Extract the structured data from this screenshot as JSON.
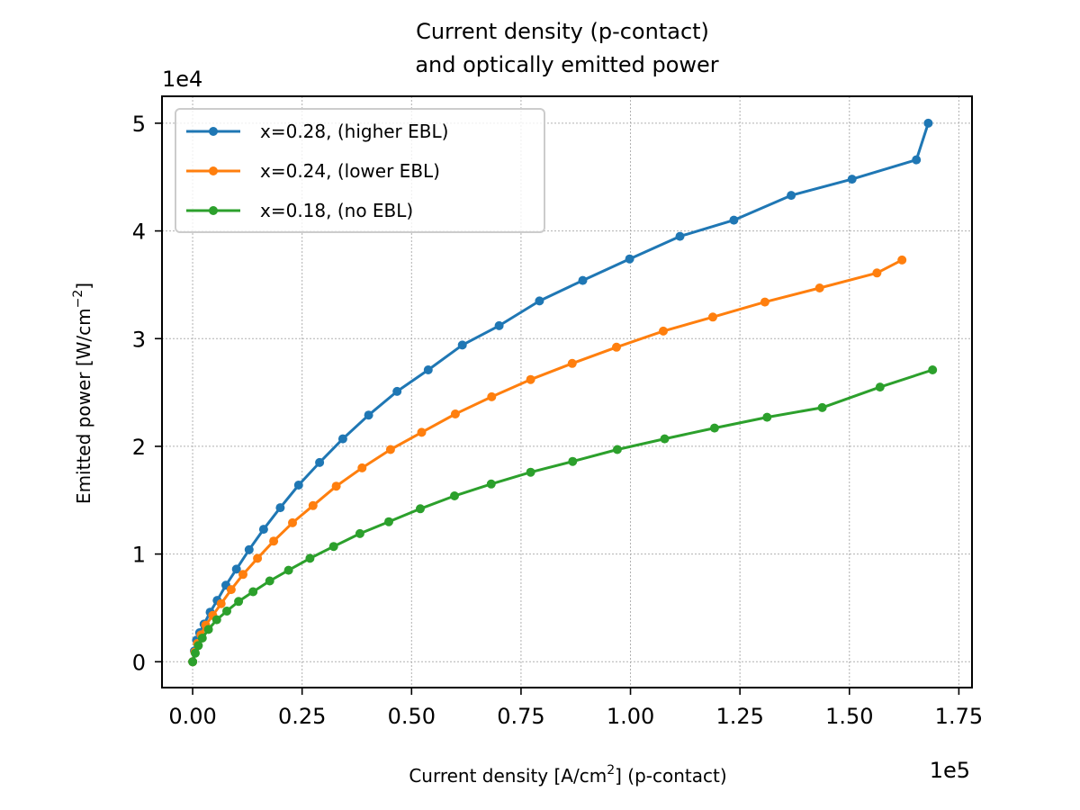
{
  "chart_data": {
    "type": "line",
    "title_lines": [
      "Current density (p-contact)",
      "and optically emitted power"
    ],
    "xlabel_main": "Current density [A/cm",
    "xlabel_sup": "2",
    "xlabel_tail": "] (p-contact)",
    "ylabel_main": "Emitted power [W/cm",
    "ylabel_sup": "−2",
    "ylabel_tail": "]",
    "x_offset_label": "1e5",
    "y_offset_label": "1e4",
    "xlim": [
      -7000,
      178000
    ],
    "ylim": [
      -2400,
      52500
    ],
    "x_ticks": [
      0,
      25000,
      50000,
      75000,
      100000,
      125000,
      150000,
      175000
    ],
    "x_tick_labels": [
      "0.00",
      "0.25",
      "0.50",
      "0.75",
      "1.00",
      "1.25",
      "1.50",
      "1.75"
    ],
    "y_ticks": [
      0,
      10000,
      20000,
      30000,
      40000,
      50000
    ],
    "y_tick_labels": [
      "0",
      "1",
      "2",
      "3",
      "4",
      "5"
    ],
    "grid": true,
    "legend_position": "top-left",
    "series": [
      {
        "name": "x=0.28, (higher EBL)",
        "color": "#1f77b4",
        "x": [
          0,
          400,
          900,
          1600,
          2600,
          4000,
          5600,
          7600,
          10000,
          12900,
          16200,
          20000,
          24200,
          29000,
          34300,
          40200,
          46700,
          53800,
          61600,
          70000,
          79200,
          89100,
          99800,
          111300,
          123600,
          136700,
          150600,
          165300,
          168000
        ],
        "y": [
          0,
          1000,
          2000,
          2700,
          3500,
          4600,
          5700,
          7100,
          8600,
          10400,
          12300,
          14300,
          16400,
          18500,
          20700,
          22900,
          25100,
          27100,
          29400,
          31200,
          33500,
          35400,
          37400,
          39500,
          41000,
          43300,
          44800,
          46600,
          50000
        ]
      },
      {
        "name": "x=0.24, (lower EBL)",
        "color": "#ff7f0e",
        "x": [
          0,
          500,
          1100,
          1900,
          3000,
          4600,
          6500,
          8800,
          11500,
          14800,
          18500,
          22800,
          27500,
          32800,
          38700,
          45200,
          52300,
          60000,
          68300,
          77200,
          86700,
          96800,
          107500,
          118800,
          130700,
          143200,
          156300,
          162000
        ],
        "y": [
          0,
          900,
          1700,
          2500,
          3400,
          4300,
          5400,
          6700,
          8100,
          9600,
          11200,
          12900,
          14500,
          16300,
          18000,
          19700,
          21300,
          23000,
          24600,
          26200,
          27700,
          29200,
          30700,
          32000,
          33400,
          34700,
          36100,
          37300
        ]
      },
      {
        "name": "x=0.18, (no EBL)",
        "color": "#2ca02c",
        "x": [
          0,
          600,
          1300,
          2200,
          3600,
          5500,
          7800,
          10500,
          13800,
          17600,
          21900,
          26800,
          32200,
          38200,
          44800,
          52000,
          59800,
          68200,
          77200,
          86800,
          97000,
          107800,
          119200,
          131200,
          143800,
          157000,
          169000
        ],
        "y": [
          0,
          800,
          1500,
          2200,
          3000,
          3900,
          4700,
          5600,
          6500,
          7500,
          8500,
          9600,
          10700,
          11900,
          13000,
          14200,
          15400,
          16500,
          17600,
          18600,
          19700,
          20700,
          21700,
          22700,
          23600,
          25500,
          27100
        ]
      }
    ]
  }
}
